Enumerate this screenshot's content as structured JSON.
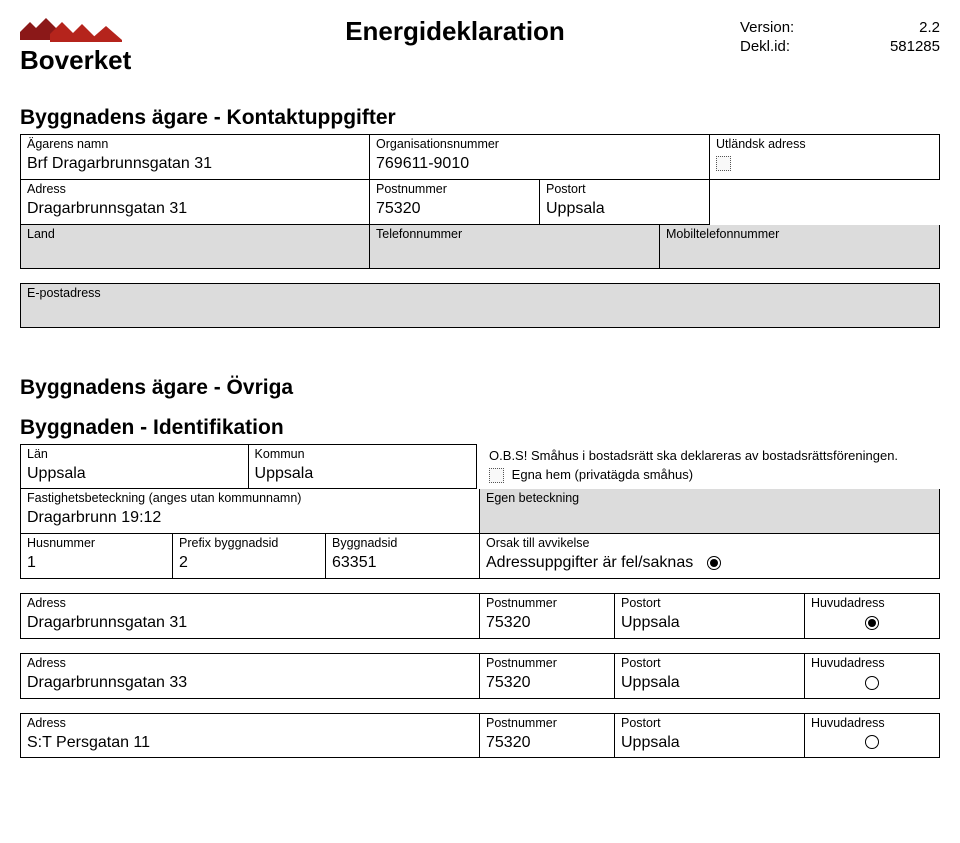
{
  "header": {
    "title": "Energideklaration",
    "meta": {
      "version_label": "Version:",
      "version_value": "2.2",
      "deklid_label": "Dekl.id:",
      "deklid_value": "581285"
    },
    "logo_colors": {
      "dark_red": "#8b1818",
      "red": "#b5241c",
      "text": "#000000"
    },
    "logo_word": "Boverket"
  },
  "owner_contact": {
    "section_title": "Byggnadens ägare - Kontaktuppgifter",
    "owner_name_label": "Ägarens namn",
    "owner_name": "Brf Dragarbrunnsgatan 31",
    "orgnr_label": "Organisationsnummer",
    "orgnr": "769611-9010",
    "foreign_addr_label": "Utländsk adress",
    "address_label": "Adress",
    "address": "Dragarbrunnsgatan 31",
    "postnr_label": "Postnummer",
    "postnr": "75320",
    "postort_label": "Postort",
    "postort": "Uppsala",
    "land_label": "Land",
    "telefon_label": "Telefonnummer",
    "mobil_label": "Mobiltelefonnummer",
    "email_label": "E-postadress"
  },
  "owner_other": {
    "section_title": "Byggnadens ägare - Övriga"
  },
  "identification": {
    "section_title": "Byggnaden - Identifikation",
    "lan_label": "Län",
    "lan": "Uppsala",
    "kommun_label": "Kommun",
    "kommun": "Uppsala",
    "obs_text": "O.B.S! Småhus i bostadsrätt ska deklareras av bostadsrättsföreningen.",
    "egna_hem_label": "Egna hem (privatägda småhus)",
    "fastighet_label": "Fastighetsbeteckning (anges utan kommunnamn)",
    "fastighet": "Dragarbrunn 19:12",
    "egen_bet_label": "Egen beteckning",
    "husnr_label": "Husnummer",
    "husnr": "1",
    "prefix_label": "Prefix byggnadsid",
    "prefix": "2",
    "byggid_label": "Byggnadsid",
    "byggid": "63351",
    "orsak_label": "Orsak till avvikelse",
    "orsak_value": "Adressuppgifter är fel/saknas",
    "huvudadress_label": "Huvudadress",
    "addresses": [
      {
        "addr_label": "Adress",
        "addr": "Dragarbrunnsgatan 31",
        "postnr_label": "Postnummer",
        "postnr": "75320",
        "postort_label": "Postort",
        "postort": "Uppsala",
        "main": true
      },
      {
        "addr_label": "Adress",
        "addr": "Dragarbrunnsgatan 33",
        "postnr_label": "Postnummer",
        "postnr": "75320",
        "postort_label": "Postort",
        "postort": "Uppsala",
        "main": false
      },
      {
        "addr_label": "Adress",
        "addr": "S:T Persgatan 11",
        "postnr_label": "Postnummer",
        "postnr": "75320",
        "postort_label": "Postort",
        "postort": "Uppsala",
        "main": false
      }
    ]
  },
  "layout": {
    "col_widths": {
      "owner_row1": [
        350,
        340,
        230
      ],
      "owner_row2": [
        350,
        170,
        170
      ],
      "owner_row3": [
        350,
        290,
        280
      ],
      "ident_row1": [
        230,
        230,
        460
      ],
      "ident_row2": [
        460,
        460
      ],
      "ident_row3": [
        153,
        153,
        154,
        460
      ],
      "addr_row": [
        460,
        135,
        190,
        135
      ]
    }
  }
}
